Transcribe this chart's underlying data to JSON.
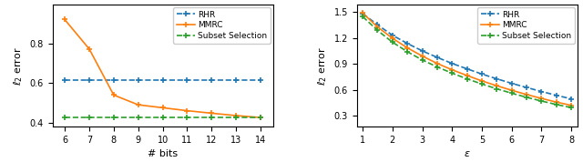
{
  "plot1": {
    "bits": [
      6,
      7,
      8,
      9,
      10,
      11,
      12,
      13,
      14
    ],
    "RHR": [
      0.615,
      0.615,
      0.615,
      0.615,
      0.615,
      0.615,
      0.615,
      0.615,
      0.615
    ],
    "MMRC": [
      0.925,
      0.775,
      0.54,
      0.49,
      0.475,
      0.46,
      0.447,
      0.435,
      0.425
    ],
    "Subset": [
      0.425,
      0.425,
      0.425,
      0.425,
      0.425,
      0.425,
      0.425,
      0.425,
      0.425
    ],
    "xlabel": "# bits",
    "ylabel": "$\\ell_2$ error",
    "xlim": [
      5.5,
      14.5
    ],
    "ylim": [
      0.38,
      1.0
    ],
    "xticks": [
      6,
      7,
      8,
      9,
      10,
      11,
      12,
      13,
      14
    ],
    "yticks": [
      0.4,
      0.6,
      0.8
    ]
  },
  "plot2": {
    "eps": [
      1.0,
      1.5,
      2.0,
      2.5,
      3.0,
      3.5,
      4.0,
      4.5,
      5.0,
      5.5,
      6.0,
      6.5,
      7.0,
      7.5,
      8.0
    ],
    "RHR": [
      1.48,
      1.35,
      1.23,
      1.135,
      1.05,
      0.975,
      0.905,
      0.843,
      0.783,
      0.728,
      0.676,
      0.628,
      0.582,
      0.538,
      0.497
    ],
    "MMRC": [
      1.485,
      1.325,
      1.195,
      1.085,
      0.99,
      0.905,
      0.832,
      0.766,
      0.704,
      0.648,
      0.596,
      0.547,
      0.502,
      0.46,
      0.422
    ],
    "Subset": [
      1.445,
      1.285,
      1.15,
      1.04,
      0.945,
      0.865,
      0.793,
      0.728,
      0.668,
      0.613,
      0.562,
      0.515,
      0.472,
      0.432,
      0.396
    ],
    "xlabel": "$\\varepsilon$",
    "ylabel": "$\\ell_2$ error",
    "xlim": [
      0.8,
      8.2
    ],
    "ylim": [
      0.18,
      1.58
    ],
    "xticks": [
      1,
      2,
      3,
      4,
      5,
      6,
      7,
      8
    ],
    "yticks": [
      0.3,
      0.6,
      0.9,
      1.2,
      1.5
    ]
  },
  "colors": {
    "RHR": "#1f77b4",
    "MMRC": "#ff7f0e",
    "Subset": "#2ca02c"
  },
  "legend_labels": [
    "RHR",
    "MMRC",
    "Subset Selection"
  ]
}
